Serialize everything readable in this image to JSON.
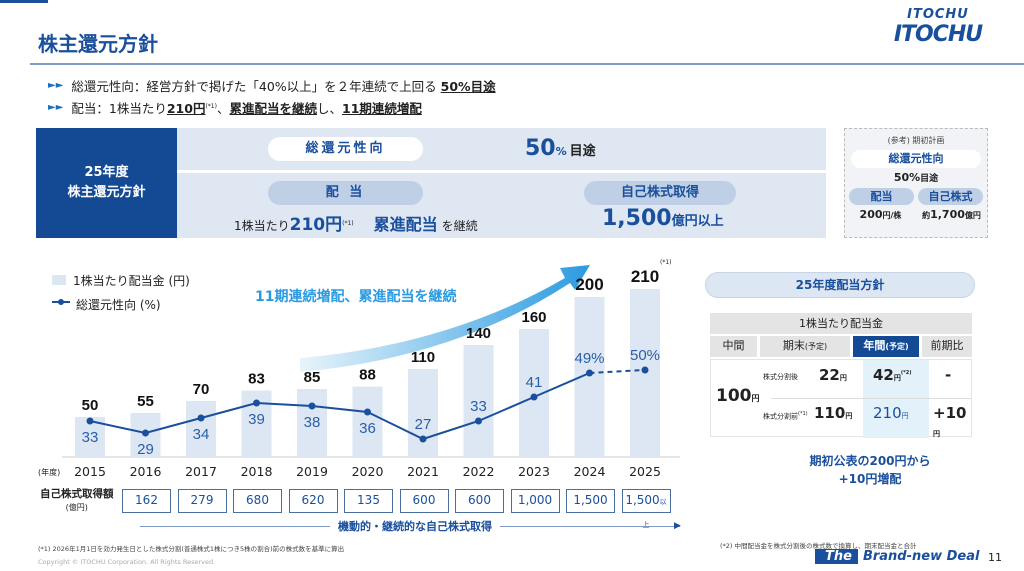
{
  "header": {
    "title": "株主還元方針",
    "logo_top": "ITOCHU",
    "logo_main": "ITOCHU"
  },
  "bullets": [
    {
      "text": "総還元性向：経営方針で掲げた「40%以上」を２年連続で上回る ",
      "em": "50%目途"
    },
    {
      "text": "配当：1株当たり",
      "em1": "210円",
      "note": "(*1)",
      "mid": "、",
      "em2": "累進配当を継続",
      "mid2": "し、",
      "em3": "11期連続増配"
    }
  ],
  "policy": {
    "label_line1": "25年度",
    "label_line2": "株主還元方針",
    "payout_label": "総還元性向",
    "payout_value": "50",
    "payout_unit": "%",
    "payout_suffix": "目途",
    "dividend_label": "配 当",
    "dividend_prefix": "1株当たり",
    "dividend_value": "210円",
    "dividend_note": "(*1)",
    "progressive": "累進配当",
    "progressive_suffix": "を継続",
    "buyback_label": "自己株式取得",
    "buyback_value": "1,500",
    "buyback_suffix": "億円以上"
  },
  "reference": {
    "title": "(参考) 期初計画",
    "payout_label": "総還元性向",
    "payout_value": "50%",
    "payout_suffix": "目途",
    "div_label": "配当",
    "div_value": "200",
    "div_unit": "円/株",
    "bb_label": "自己株式",
    "bb_prefix": "約",
    "bb_value": "1,700",
    "bb_unit": "億円"
  },
  "chart_data": {
    "type": "bar+line",
    "legend": [
      "1株当たり配当金 (円)",
      "総還元性向 (%)"
    ],
    "xlabel": "(年度)",
    "categories": [
      "2015",
      "2016",
      "2017",
      "2018",
      "2019",
      "2020",
      "2021",
      "2022",
      "2023",
      "2024",
      "2025"
    ],
    "series": [
      {
        "name": "1株当たり配当金 (円)",
        "type": "bar",
        "values": [
          50,
          55,
          70,
          83,
          85,
          88,
          110,
          140,
          160,
          200,
          210
        ]
      },
      {
        "name": "総還元性向 (%)",
        "type": "line",
        "values": [
          33,
          29,
          34,
          39,
          38,
          36,
          27,
          33,
          41,
          49,
          50
        ],
        "labels": [
          "33",
          "29",
          "34",
          "39",
          "38",
          "36",
          "27",
          "33",
          "41",
          "49%",
          "50%"
        ]
      }
    ],
    "annotation": "11期連続増配、累進配当を継続",
    "note_2025": "(*1)"
  },
  "buyback": {
    "label": "自己株式取得額",
    "unit": "(億円)",
    "values": [
      "162",
      "279",
      "680",
      "620",
      "135",
      "600",
      "600",
      "1,000",
      "1,500",
      "1,500"
    ],
    "last_suffix": "以上",
    "arrow_label": "機動的・継続的な自己株式取得"
  },
  "right": {
    "heading": "25年度配当方針",
    "table_title": "1株当たり配当金",
    "cols": [
      "中間",
      "期末",
      "(予定)",
      "年間",
      "(予定)",
      "前期比"
    ],
    "interim": "100",
    "yen": "円",
    "after_label": "株式分割後",
    "after_end": "22",
    "after_year": "42",
    "after_note": "(*2)",
    "after_diff": "-",
    "before_label": "株式分割前",
    "before_note": "(*1)",
    "before_end": "110",
    "before_year": "210",
    "before_diff": "+10",
    "msg1": "期初公表の200円から",
    "msg2": "+10円増配"
  },
  "footer": {
    "note1": "(*1) 2026年1月1日を効力発生日とした株式分割(普通株式1株につき5株の割合)前の株式数を基準に算出",
    "note2": "(*2) 中間配当金を株式分割後の株式数で換算し、期末配当金と合計",
    "copyright": "Copyright © ITOCHU Corporation. All Rights Reserved.",
    "slogan_the": "The",
    "slogan": "Brand-new Deal",
    "page": "11"
  },
  "colors": {
    "brand": "#1a4f9c",
    "bar": "#dde6f3",
    "accent": "#3aa4dd"
  }
}
